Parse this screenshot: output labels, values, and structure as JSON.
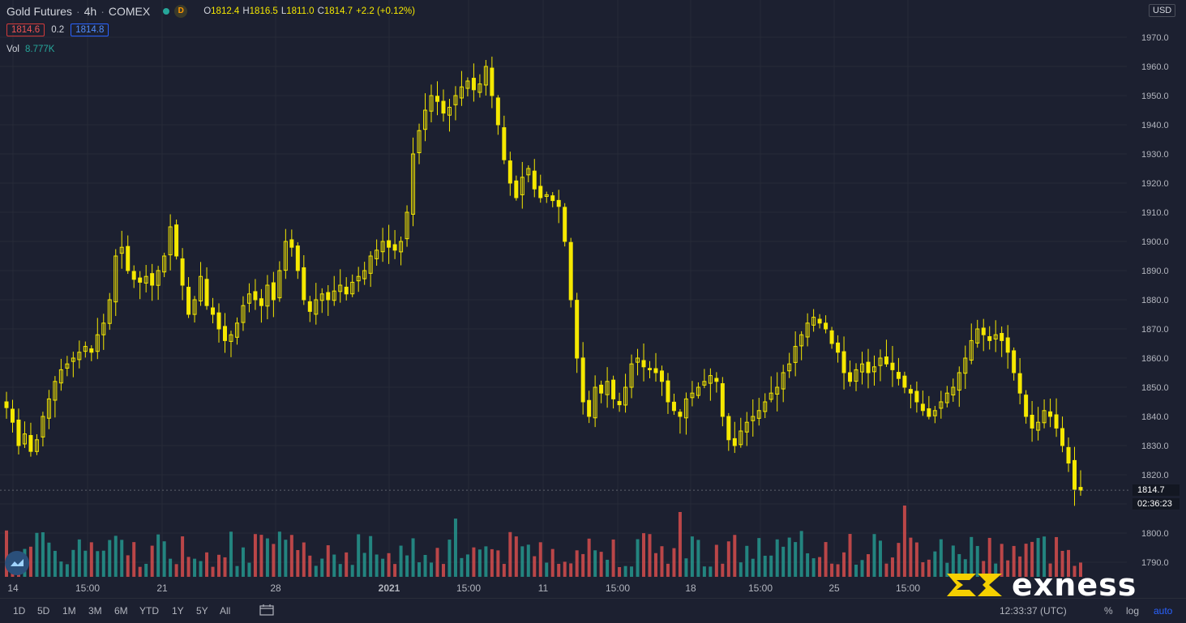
{
  "header": {
    "symbol": "Gold Futures",
    "interval": "4h",
    "exchange": "COMEX",
    "status_letter": "D",
    "ohlc": {
      "o_label": "O",
      "o": "1812.4",
      "h_label": "H",
      "h": "1816.5",
      "l_label": "L",
      "l": "1811.0",
      "c_label": "C",
      "c": "1814.7",
      "change": "+2.2 (+0.12%)"
    },
    "bid": "1814.6",
    "spread": "0.2",
    "ask": "1814.8",
    "vol_label": "Vol",
    "vol_value": "8.777K"
  },
  "price_axis": {
    "currency": "USD",
    "last_price": "1814.7",
    "countdown": "02:36:23"
  },
  "bottom_bar": {
    "ranges": [
      "1D",
      "5D",
      "1M",
      "3M",
      "6M",
      "YTD",
      "1Y",
      "5Y",
      "All"
    ],
    "clock": "12:33:37 (UTC)",
    "percent": "%",
    "log": "log",
    "auto": "auto"
  },
  "brand": {
    "name": "exness"
  },
  "colors": {
    "background": "#1c2030",
    "up_candle": "#f5e800",
    "down_candle": "#f5e800",
    "vol_up": "#26a69a",
    "vol_down": "#ef5350",
    "grid": "#262a38",
    "axis_text": "#b2b5be",
    "brand_accent": "#f5d000"
  },
  "chart_data": {
    "type": "candlestick",
    "title": "Gold Futures · 4h · COMEX",
    "ylim": [
      1785,
      1975
    ],
    "y_ticks": [
      1790,
      1800,
      1810,
      1820,
      1830,
      1840,
      1850,
      1860,
      1870,
      1880,
      1890,
      1900,
      1910,
      1920,
      1930,
      1940,
      1950,
      1960,
      1970
    ],
    "x_tick_labels": [
      "14",
      "15:00",
      "21",
      "28",
      "2021",
      "15:00",
      "11",
      "15:00",
      "18",
      "15:00",
      "25",
      "15:00"
    ],
    "close_path": [
      1843,
      1838,
      1830,
      1834,
      1828,
      1832,
      1840,
      1846,
      1852,
      1856,
      1858,
      1860,
      1862,
      1864,
      1862,
      1868,
      1872,
      1880,
      1895,
      1898,
      1890,
      1887,
      1886,
      1888,
      1885,
      1890,
      1895,
      1905,
      1895,
      1885,
      1875,
      1880,
      1888,
      1878,
      1875,
      1870,
      1866,
      1868,
      1872,
      1878,
      1882,
      1880,
      1878,
      1885,
      1880,
      1890,
      1900,
      1898,
      1890,
      1880,
      1876,
      1880,
      1882,
      1880,
      1883,
      1885,
      1882,
      1886,
      1888,
      1890,
      1895,
      1897,
      1900,
      1898,
      1897,
      1900,
      1910,
      1930,
      1938,
      1945,
      1950,
      1948,
      1944,
      1946,
      1950,
      1953,
      1955,
      1952,
      1954,
      1960,
      1950,
      1940,
      1928,
      1920,
      1915,
      1922,
      1925,
      1918,
      1915,
      1916,
      1914,
      1912,
      1900,
      1880,
      1860,
      1845,
      1840,
      1850,
      1848,
      1852,
      1846,
      1844,
      1850,
      1858,
      1860,
      1857,
      1856,
      1855,
      1852,
      1845,
      1842,
      1840,
      1846,
      1848,
      1850,
      1852,
      1854,
      1852,
      1840,
      1832,
      1830,
      1835,
      1838,
      1840,
      1842,
      1845,
      1848,
      1850,
      1855,
      1858,
      1864,
      1868,
      1872,
      1874,
      1872,
      1870,
      1865,
      1862,
      1855,
      1852,
      1856,
      1858,
      1855,
      1857,
      1860,
      1858,
      1856,
      1853,
      1850,
      1848,
      1845,
      1842,
      1840,
      1842,
      1845,
      1848,
      1850,
      1855,
      1860,
      1866,
      1870,
      1868,
      1866,
      1868,
      1866,
      1862,
      1855,
      1848,
      1840,
      1836,
      1838,
      1842,
      1840,
      1836,
      1830,
      1824,
      1815,
      1814.7
    ],
    "last_close": 1814.7
  }
}
